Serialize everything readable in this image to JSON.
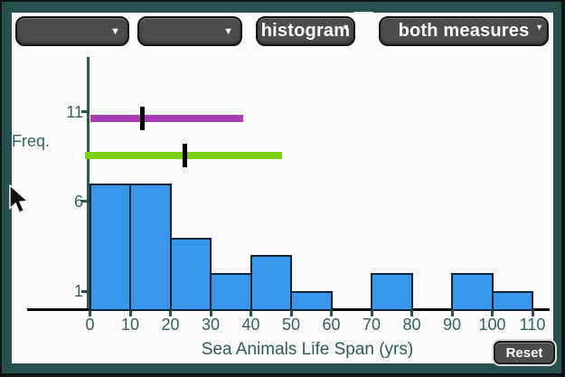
{
  "toolbar": {
    "dropdown1": {
      "value": ""
    },
    "dropdown2": {
      "value": ""
    },
    "view_dropdown": {
      "label": "histogram"
    },
    "measures_dropdown": {
      "label": "both measures"
    }
  },
  "icons": {
    "dropdown_arrow": "▼"
  },
  "reset_button": {
    "label": "Reset"
  },
  "colors": {
    "frame_teal": "#26504c",
    "button_gray": "#4c4c4c",
    "bar_blue": "#3897ea",
    "purple_line": "#a73cb5",
    "green_line": "#7ccf15",
    "axis_text": "#35615f"
  },
  "chart_data": {
    "type": "bar",
    "title": "",
    "xlabel": "Sea Animals Life Span (yrs)",
    "ylabel": "Freq.",
    "bin_width": 10,
    "bin_starts": [
      0,
      10,
      20,
      30,
      40,
      50,
      60,
      70,
      80,
      90,
      100
    ],
    "frequencies": [
      7,
      7,
      4,
      2,
      3,
      1,
      0,
      2,
      0,
      2,
      1
    ],
    "x_ticks": [
      "0",
      "10",
      "20",
      "30",
      "40",
      "50",
      "60",
      "70",
      "80",
      "90",
      "100",
      "110"
    ],
    "x_tick_values": [
      0,
      10,
      20,
      30,
      40,
      50,
      60,
      70,
      80,
      90,
      100,
      110
    ],
    "y_ticks": [
      "1",
      "6",
      "11"
    ],
    "y_tick_values": [
      1,
      6,
      11
    ],
    "xlim": [
      0,
      110
    ],
    "ylim": [
      0,
      13
    ],
    "grid": false,
    "bar_color": "#3897ea",
    "bar_border": "#0e2438",
    "measure_lines": [
      {
        "name": "purple-measure-line",
        "color": "#a73cb5",
        "freq_level": 10.63,
        "x_start": 0,
        "x_end": 38.2,
        "marker_x": 13
      },
      {
        "name": "green-measure-line",
        "color": "#7ccf15",
        "freq_level": 8.56,
        "x_start": -1.3,
        "x_end": 47.7,
        "marker_x": 23.6
      }
    ]
  }
}
